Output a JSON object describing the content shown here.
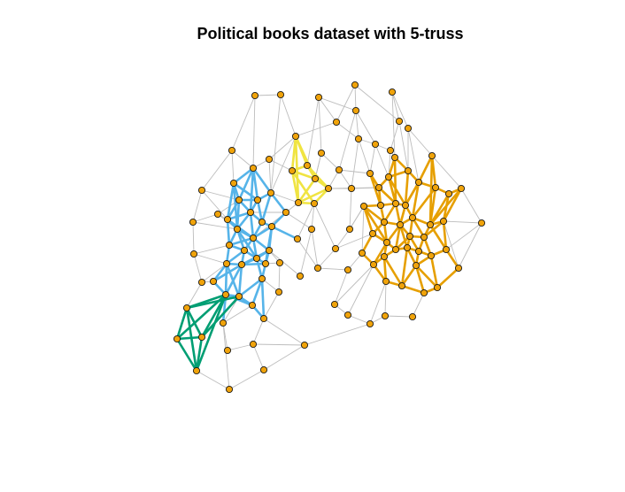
{
  "title": "Political books dataset with 5-truss",
  "colors": {
    "background": "#ffffff",
    "grey_edge": "#bdbdbd",
    "node_fill": "#f0a30a",
    "node_stroke": "#1a1a1a",
    "cluster_blue": "#56b4e9",
    "cluster_orange": "#e69f00",
    "cluster_yellow": "#f0e442",
    "cluster_green": "#009e73"
  }
}
